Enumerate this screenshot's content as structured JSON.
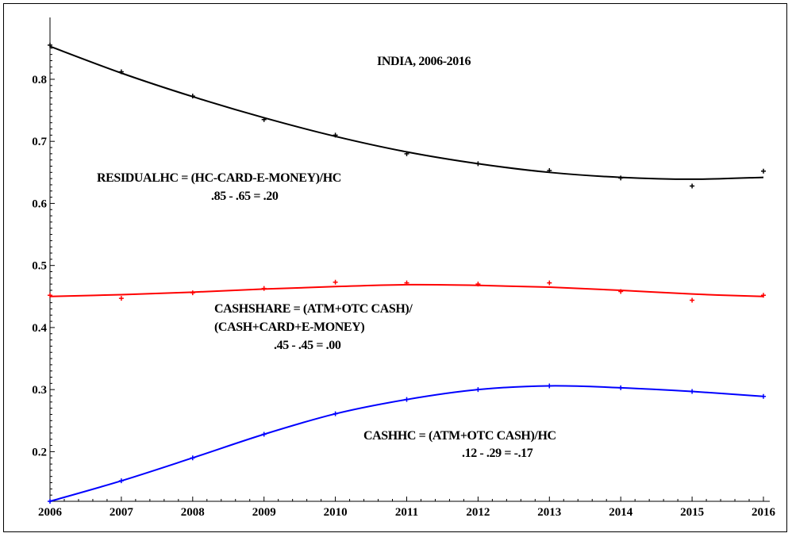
{
  "chart_data": {
    "type": "line",
    "title": "INDIA, 2006-2016",
    "xlabel": "",
    "ylabel": "",
    "xlim": [
      2006,
      2016
    ],
    "ylim": [
      0.12,
      0.86
    ],
    "xticks": [
      2006,
      2007,
      2008,
      2009,
      2010,
      2011,
      2012,
      2013,
      2014,
      2015,
      2016
    ],
    "yticks": [
      0.2,
      0.3,
      0.4,
      0.5,
      0.6,
      0.7,
      0.8
    ],
    "ytick_labels": [
      "0.2",
      "0.3",
      "0.4",
      "0.5",
      "0.6",
      "0.7",
      "0.8"
    ],
    "grid": false,
    "legend": "none",
    "series": [
      {
        "color": "#000000",
        "points_x": [
          2006,
          2007,
          2008,
          2009,
          2010,
          2011,
          2012,
          2013,
          2014,
          2015,
          2016
        ],
        "points_y": [
          0.855,
          0.812,
          0.773,
          0.735,
          0.71,
          0.68,
          0.664,
          0.653,
          0.641,
          0.628,
          0.652
        ],
        "fit_y": [
          0.853,
          0.81,
          0.772,
          0.738,
          0.708,
          0.683,
          0.664,
          0.65,
          0.642,
          0.639,
          0.642
        ]
      },
      {
        "color": "#ff0000",
        "points_x": [
          2006,
          2007,
          2008,
          2009,
          2010,
          2011,
          2012,
          2013,
          2014,
          2015,
          2016
        ],
        "points_y": [
          0.452,
          0.447,
          0.456,
          0.463,
          0.473,
          0.472,
          0.47,
          0.472,
          0.458,
          0.444,
          0.452
        ],
        "fit_y": [
          0.45,
          0.453,
          0.457,
          0.462,
          0.466,
          0.469,
          0.468,
          0.465,
          0.46,
          0.454,
          0.45
        ]
      },
      {
        "color": "#0000ff",
        "points_x": [
          2006,
          2007,
          2008,
          2009,
          2010,
          2011,
          2012,
          2013,
          2014,
          2015,
          2016
        ],
        "points_y": [
          0.12,
          0.153,
          0.19,
          0.228,
          0.261,
          0.284,
          0.3,
          0.306,
          0.303,
          0.297,
          0.289
        ],
        "fit_y": [
          0.12,
          0.153,
          0.19,
          0.228,
          0.261,
          0.284,
          0.3,
          0.306,
          0.303,
          0.297,
          0.289
        ]
      }
    ],
    "annotations": [
      {
        "lines": [
          "RESIDUALHC = (HC-CARD-E-MONEY)/HC",
          ".85 - .65 = .20"
        ]
      },
      {
        "lines": [
          "CASHSHARE = (ATM+OTC CASH)/",
          "(CASH+CARD+E-MONEY)",
          ".45 - .45 = .00"
        ]
      },
      {
        "lines": [
          "CASHHC = (ATM+OTC CASH)/HC",
          ".12 - .29 = -.17"
        ]
      }
    ]
  }
}
